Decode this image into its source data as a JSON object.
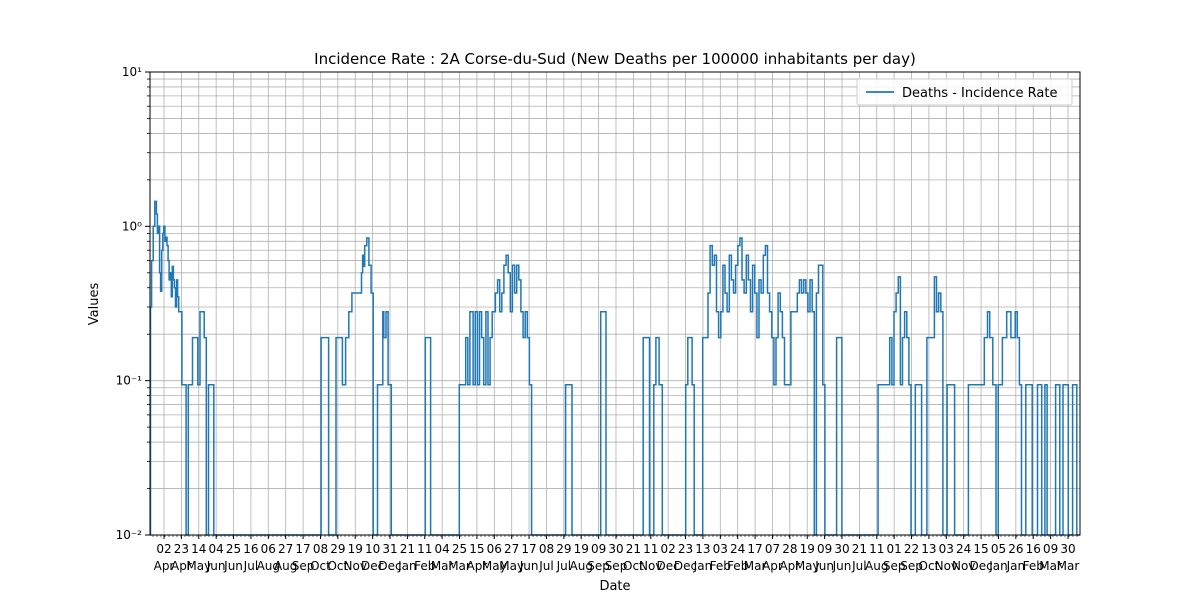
{
  "chart_data": {
    "type": "line",
    "title": "Incidence Rate : 2A Corse-du-Sud (New Deaths per 100000 inhabitants per day)",
    "xlabel": "Date",
    "ylabel": "Values",
    "yscale": "log",
    "ylim": [
      0.01,
      10
    ],
    "y_tick_labels": [
      "10⁻²",
      "10⁻¹",
      "10⁰",
      "10¹"
    ],
    "grid": true,
    "legend_position": "top-right",
    "legend_entries": [
      "Deaths - Incidence Rate"
    ],
    "series_color": "#1f77b4",
    "x_tick_days": [
      "02",
      "23",
      "14",
      "04",
      "25",
      "16",
      "06",
      "27",
      "17",
      "08",
      "29",
      "19",
      "10",
      "31",
      "21",
      "11",
      "04",
      "25",
      "15",
      "06",
      "27",
      "17",
      "08",
      "29",
      "19",
      "09",
      "30",
      "21",
      "11",
      "02",
      "23",
      "13",
      "03",
      "24",
      "17",
      "07",
      "28",
      "19",
      "09",
      "30",
      "21",
      "11",
      "01",
      "22",
      "13",
      "03",
      "24",
      "15",
      "05",
      "26",
      "16",
      "09",
      "30"
    ],
    "x_tick_months": [
      "Apr",
      "Apr",
      "May",
      "Jun",
      "Jun",
      "Jul",
      "Aug",
      "Aug",
      "Sep",
      "Oct",
      "Oct",
      "Nov",
      "Dec",
      "Dec",
      "Jan",
      "Feb",
      "Mar",
      "Mar",
      "Apr",
      "May",
      "May",
      "Jun",
      "Jul",
      "Jul",
      "Aug",
      "Sep",
      "Sep",
      "Oct",
      "Nov",
      "Dec",
      "Dec",
      "Jan",
      "Feb",
      "Feb",
      "Mar",
      "Apr",
      "Apr",
      "May",
      "Jun",
      "Jun",
      "Jul",
      "Aug",
      "Sep",
      "Sep",
      "Oct",
      "Nov",
      "Nov",
      "Dec",
      "Jan",
      "Jan",
      "Feb",
      "Mar",
      "Mar"
    ],
    "series": [
      {
        "name": "Deaths - Incidence Rate",
        "points": [
          [
            0,
            0.01
          ],
          [
            0.5,
            0.3
          ],
          [
            1.5,
            0.6
          ],
          [
            3,
            1.0
          ],
          [
            4.5,
            1.45
          ],
          [
            6,
            1.2
          ],
          [
            7,
            0.9
          ],
          [
            8,
            1.0
          ],
          [
            9,
            0.5
          ],
          [
            10,
            0.38
          ],
          [
            11,
            0.7
          ],
          [
            12,
            0.9
          ],
          [
            13,
            1.0
          ],
          [
            14,
            0.8
          ],
          [
            15,
            0.85
          ],
          [
            16,
            0.75
          ],
          [
            17,
            0.6
          ],
          [
            18,
            0.45
          ],
          [
            19,
            0.5
          ],
          [
            20,
            0.35
          ],
          [
            21,
            0.55
          ],
          [
            22,
            0.45
          ],
          [
            23,
            0.4
          ],
          [
            24,
            0.3
          ],
          [
            25,
            0.45
          ],
          [
            26,
            0.35
          ],
          [
            27,
            0.28
          ],
          [
            28,
            0.28
          ],
          [
            30,
            0.094
          ],
          [
            34,
            0.01
          ],
          [
            36,
            0.094
          ],
          [
            40,
            0.19
          ],
          [
            45,
            0.094
          ],
          [
            47,
            0.28
          ],
          [
            51,
            0.19
          ],
          [
            53,
            0.01
          ],
          [
            55,
            0.094
          ],
          [
            60,
            0.01
          ],
          [
            161,
            0.19
          ],
          [
            168,
            0.01
          ],
          [
            175,
            0.19
          ],
          [
            181,
            0.094
          ],
          [
            184,
            0.19
          ],
          [
            187,
            0.28
          ],
          [
            190,
            0.37
          ],
          [
            196,
            0.37
          ],
          [
            199,
            0.5
          ],
          [
            200,
            0.65
          ],
          [
            201,
            0.55
          ],
          [
            202,
            0.75
          ],
          [
            204,
            0.84
          ],
          [
            206,
            0.56
          ],
          [
            208,
            0.37
          ],
          [
            210,
            0.01
          ],
          [
            214,
            0.094
          ],
          [
            219,
            0.28
          ],
          [
            220,
            0.19
          ],
          [
            222,
            0.28
          ],
          [
            224,
            0.094
          ],
          [
            227,
            0.01
          ],
          [
            259,
            0.19
          ],
          [
            264,
            0.01
          ],
          [
            291,
            0.094
          ],
          [
            297,
            0.19
          ],
          [
            299,
            0.094
          ],
          [
            301,
            0.28
          ],
          [
            304,
            0.094
          ],
          [
            306,
            0.28
          ],
          [
            308,
            0.094
          ],
          [
            310,
            0.28
          ],
          [
            312,
            0.19
          ],
          [
            314,
            0.094
          ],
          [
            316,
            0.28
          ],
          [
            318,
            0.094
          ],
          [
            320,
            0.19
          ],
          [
            322,
            0.28
          ],
          [
            325,
            0.37
          ],
          [
            327,
            0.45
          ],
          [
            329,
            0.28
          ],
          [
            331,
            0.37
          ],
          [
            333,
            0.56
          ],
          [
            335,
            0.65
          ],
          [
            337,
            0.5
          ],
          [
            339,
            0.28
          ],
          [
            341,
            0.56
          ],
          [
            343,
            0.37
          ],
          [
            345,
            0.56
          ],
          [
            347,
            0.45
          ],
          [
            349,
            0.28
          ],
          [
            351,
            0.19
          ],
          [
            353,
            0.28
          ],
          [
            355,
            0.19
          ],
          [
            357,
            0.094
          ],
          [
            359,
            0.01
          ],
          [
            391,
            0.094
          ],
          [
            397,
            0.01
          ],
          [
            424,
            0.28
          ],
          [
            429,
            0.01
          ],
          [
            464,
            0.19
          ],
          [
            470,
            0.01
          ],
          [
            474,
            0.094
          ],
          [
            476,
            0.19
          ],
          [
            479,
            0.094
          ],
          [
            482,
            0.01
          ],
          [
            504,
            0.094
          ],
          [
            506,
            0.19
          ],
          [
            510,
            0.094
          ],
          [
            512,
            0.01
          ],
          [
            520,
            0.19
          ],
          [
            525,
            0.37
          ],
          [
            527,
            0.75
          ],
          [
            529,
            0.56
          ],
          [
            531,
            0.65
          ],
          [
            533,
            0.28
          ],
          [
            535,
            0.19
          ],
          [
            537,
            0.28
          ],
          [
            539,
            0.56
          ],
          [
            541,
            0.37
          ],
          [
            543,
            0.28
          ],
          [
            545,
            0.65
          ],
          [
            547,
            0.45
          ],
          [
            549,
            0.37
          ],
          [
            551,
            0.56
          ],
          [
            553,
            0.75
          ],
          [
            555,
            0.84
          ],
          [
            557,
            0.45
          ],
          [
            559,
            0.37
          ],
          [
            561,
            0.65
          ],
          [
            563,
            0.45
          ],
          [
            565,
            0.28
          ],
          [
            567,
            0.56
          ],
          [
            569,
            0.37
          ],
          [
            571,
            0.19
          ],
          [
            573,
            0.45
          ],
          [
            575,
            0.37
          ],
          [
            577,
            0.65
          ],
          [
            579,
            0.75
          ],
          [
            581,
            0.37
          ],
          [
            583,
            0.28
          ],
          [
            585,
            0.19
          ],
          [
            587,
            0.094
          ],
          [
            589,
            0.19
          ],
          [
            591,
            0.37
          ],
          [
            593,
            0.28
          ],
          [
            595,
            0.19
          ],
          [
            597,
            0.094
          ],
          [
            603,
            0.28
          ],
          [
            609,
            0.37
          ],
          [
            611,
            0.45
          ],
          [
            613,
            0.37
          ],
          [
            615,
            0.45
          ],
          [
            617,
            0.37
          ],
          [
            619,
            0.28
          ],
          [
            621,
            0.45
          ],
          [
            623,
            0.28
          ],
          [
            625,
            0.01
          ],
          [
            627,
            0.37
          ],
          [
            629,
            0.56
          ],
          [
            633,
            0.094
          ],
          [
            635,
            0.01
          ],
          [
            646,
            0.19
          ],
          [
            651,
            0.01
          ],
          [
            685,
            0.094
          ],
          [
            696,
            0.19
          ],
          [
            698,
            0.094
          ],
          [
            700,
            0.28
          ],
          [
            702,
            0.37
          ],
          [
            704,
            0.47
          ],
          [
            706,
            0.094
          ],
          [
            708,
            0.19
          ],
          [
            710,
            0.28
          ],
          [
            712,
            0.19
          ],
          [
            714,
            0.094
          ],
          [
            716,
            0.01
          ],
          [
            720,
            0.094
          ],
          [
            726,
            0.01
          ],
          [
            731,
            0.19
          ],
          [
            738,
            0.47
          ],
          [
            740,
            0.28
          ],
          [
            742,
            0.37
          ],
          [
            744,
            0.28
          ],
          [
            746,
            0.01
          ],
          [
            750,
            0.094
          ],
          [
            757,
            0.01
          ],
          [
            770,
            0.094
          ],
          [
            785,
            0.19
          ],
          [
            788,
            0.28
          ],
          [
            790,
            0.19
          ],
          [
            793,
            0.094
          ],
          [
            796,
            0.01
          ],
          [
            798,
            0.094
          ],
          [
            802,
            0.19
          ],
          [
            806,
            0.28
          ],
          [
            810,
            0.19
          ],
          [
            814,
            0.28
          ],
          [
            816,
            0.19
          ],
          [
            818,
            0.094
          ],
          [
            820,
            0.01
          ],
          [
            824,
            0.094
          ],
          [
            830,
            0.01
          ],
          [
            835,
            0.094
          ],
          [
            839,
            0.01
          ],
          [
            842,
            0.094
          ],
          [
            844,
            0.01
          ],
          [
            852,
            0.094
          ],
          [
            856,
            0.01
          ],
          [
            859,
            0.094
          ],
          [
            864,
            0.01
          ],
          [
            868,
            0.094
          ],
          [
            872,
            0.01
          ],
          [
            875,
            0.01
          ]
        ]
      }
    ]
  }
}
